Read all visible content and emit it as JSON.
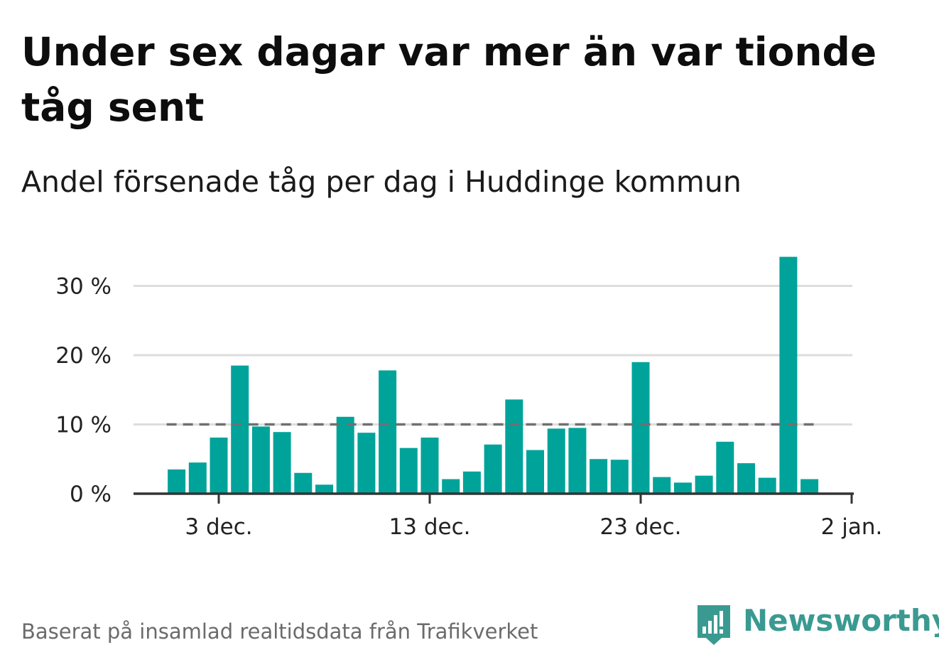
{
  "title": "Under sex dagar var mer än var tionde tåg sent",
  "subtitle": "Andel försenade tåg per dag i Huddinge kommun",
  "footer": "Baserat på insamlad realtidsdata från Trafikverket",
  "brand": {
    "name": "Newsworthy",
    "icon": "newsworthy-logo-icon",
    "color": "#3a9a91"
  },
  "colors": {
    "bar": "#00a39a",
    "reference_line": "#707070",
    "grid": "#dddddd",
    "axis": "#333333"
  },
  "chart_data": {
    "type": "bar",
    "title": "Under sex dagar var mer än var tionde tåg sent",
    "subtitle": "Andel försenade tåg per dag i Huddinge kommun",
    "xlabel": "",
    "ylabel": "",
    "x_start_day": 1,
    "values": [
      3.5,
      4.5,
      8.1,
      18.5,
      9.7,
      8.9,
      3.0,
      1.3,
      11.1,
      8.8,
      17.8,
      6.6,
      8.1,
      2.1,
      3.2,
      7.1,
      13.6,
      6.3,
      9.4,
      9.5,
      5.0,
      4.9,
      19.0,
      2.4,
      1.6,
      2.6,
      7.5,
      4.4,
      2.3,
      34.2,
      2.1
    ],
    "ylim": [
      0,
      35
    ],
    "y_ticks": [
      {
        "value": 0,
        "label": "0 %"
      },
      {
        "value": 10,
        "label": "10 %"
      },
      {
        "value": 20,
        "label": "20 %"
      },
      {
        "value": 30,
        "label": "30 %"
      }
    ],
    "x_ticks": [
      {
        "day": 3,
        "label": "3 dec."
      },
      {
        "day": 13,
        "label": "13 dec."
      },
      {
        "day": 23,
        "label": "23 dec."
      },
      {
        "day": 33,
        "label": "2 jan."
      }
    ],
    "x_range": [
      -1,
      33
    ],
    "reference_line": {
      "value": 10,
      "style": "dashed"
    },
    "grid": true,
    "legend": "none"
  }
}
